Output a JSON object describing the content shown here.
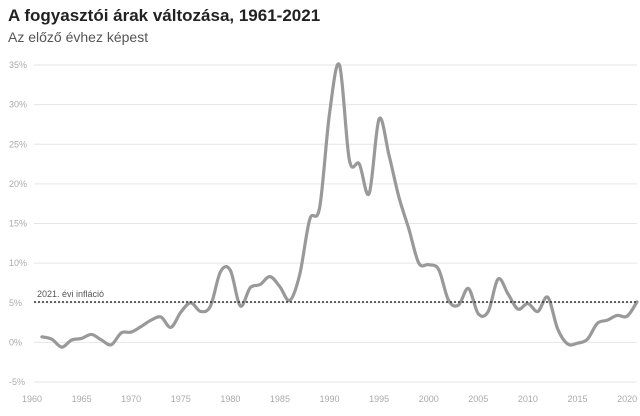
{
  "chart_data": {
    "type": "line",
    "title": "A fogyasztói árak változása, 1961-2021",
    "subtitle": "Az előző évhez képest",
    "xlabel": "",
    "ylabel": "",
    "xlim": [
      1960,
      2021
    ],
    "ylim": [
      -5,
      35
    ],
    "x_ticks": [
      1960,
      1965,
      1970,
      1975,
      1980,
      1985,
      1990,
      1995,
      2000,
      2005,
      2010,
      2015,
      2020
    ],
    "x_tick_labels": [
      "1960",
      "1965",
      "1970",
      "1975",
      "1980",
      "1985",
      "1990",
      "1995",
      "2000",
      "2005",
      "2010",
      "2015",
      "2020"
    ],
    "y_ticks": [
      -5,
      0,
      5,
      10,
      15,
      20,
      25,
      30,
      35
    ],
    "y_tick_labels": [
      "-5%",
      "0%",
      "5%",
      "10%",
      "15%",
      "20%",
      "25%",
      "30%",
      "35%"
    ],
    "grid": "horizontal",
    "line_color": "#999999",
    "reference_line": {
      "value": 5.1,
      "label": "2021. évi infláció",
      "color": "#333333"
    },
    "series": [
      {
        "x": [
          1961,
          1962,
          1963,
          1964,
          1965,
          1966,
          1967,
          1968,
          1969,
          1970,
          1971,
          1972,
          1973,
          1974,
          1975,
          1976,
          1977,
          1978,
          1979,
          1980,
          1981,
          1982,
          1983,
          1984,
          1985,
          1986,
          1987,
          1988,
          1989,
          1990,
          1991,
          1992,
          1993,
          1994,
          1995,
          1996,
          1997,
          1998,
          1999,
          2000,
          2001,
          2002,
          2003,
          2004,
          2005,
          2006,
          2007,
          2008,
          2009,
          2010,
          2011,
          2012,
          2013,
          2014,
          2015,
          2016,
          2017,
          2018,
          2019,
          2020,
          2021
        ],
        "y": [
          0.7,
          0.4,
          -0.6,
          0.3,
          0.5,
          1.0,
          0.3,
          -0.3,
          1.2,
          1.3,
          2.0,
          2.8,
          3.2,
          1.9,
          3.8,
          5.0,
          3.9,
          4.6,
          8.9,
          9.1,
          4.6,
          6.9,
          7.3,
          8.3,
          7.0,
          5.3,
          8.6,
          15.5,
          17.0,
          28.9,
          35.0,
          23.0,
          22.5,
          18.8,
          28.2,
          23.6,
          18.3,
          14.3,
          10.0,
          9.8,
          9.2,
          5.3,
          4.7,
          6.8,
          3.6,
          3.9,
          8.0,
          6.1,
          4.2,
          4.9,
          3.9,
          5.7,
          1.7,
          -0.2,
          -0.1,
          0.4,
          2.4,
          2.8,
          3.4,
          3.3,
          5.1
        ]
      }
    ]
  }
}
